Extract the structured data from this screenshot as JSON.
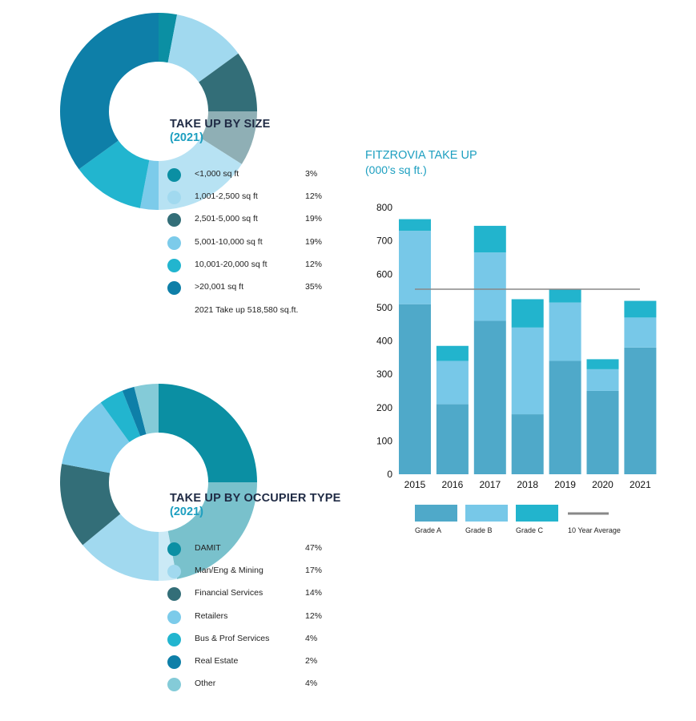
{
  "colors": {
    "teal_dark": "#0b8fa3",
    "light_blue": "#a1d9ef",
    "slate": "#336e78",
    "sky": "#7ccbea",
    "cyan": "#22b5cf",
    "ocean": "#0e7fa8",
    "pale": "#84cbd8",
    "grade_a": "#4fa9c9",
    "grade_b": "#77c8e8",
    "grade_c": "#22b4cd",
    "avg_line": "#888888",
    "title_navy": "#1f2a44",
    "title_teal": "#1d9fc0"
  },
  "size_panel": {
    "title": "TAKE UP BY SIZE",
    "year": "(2021)",
    "footnote": "2021 Take up 518,580 sq.ft."
  },
  "occupier_panel": {
    "title": "TAKE UP BY OCCUPIER TYPE",
    "year": "(2021)"
  },
  "bar_panel": {
    "title": "FITZROVIA TAKE UP",
    "subtitle": "(000’s sq ft.)"
  },
  "chart_data": [
    {
      "type": "pie",
      "title": "TAKE UP BY SIZE",
      "subtitle": "(2021)",
      "labels": [
        "<1,000 sq ft",
        "1,001-2,500 sq ft",
        "2,501-5,000 sq ft",
        "5,001-10,000 sq ft",
        "10,001-20,000 sq ft",
        ">20,001 sq ft"
      ],
      "value_labels": [
        "3%",
        "12%",
        "19%",
        "19%",
        "12%",
        "35%"
      ],
      "values": [
        3,
        12,
        19,
        19,
        12,
        35
      ],
      "colors": [
        "#0b8fa3",
        "#a1d9ef",
        "#336e78",
        "#7ccbea",
        "#22b5cf",
        "#0e7fa8"
      ],
      "annotation": "2021 Take up 518,580 sq.ft."
    },
    {
      "type": "pie",
      "title": "TAKE UP BY OCCUPIER TYPE",
      "subtitle": "(2021)",
      "labels": [
        "DAMIT",
        "Man/Eng & Mining",
        "Financial Services",
        "Retailers",
        "Bus & Prof Services",
        "Real Estate",
        "Other"
      ],
      "value_labels": [
        "47%",
        "17%",
        "14%",
        "12%",
        "4%",
        "2%",
        "4%"
      ],
      "values": [
        47,
        17,
        14,
        12,
        4,
        2,
        4
      ],
      "colors": [
        "#0b8fa3",
        "#a1d9ef",
        "#336e78",
        "#7ccbea",
        "#22b5cf",
        "#0e7fa8",
        "#84cbd8"
      ]
    },
    {
      "type": "bar",
      "stacked": true,
      "title": "FITZROVIA TAKE UP",
      "subtitle": "(000’s sq ft.)",
      "categories": [
        "2015",
        "2016",
        "2017",
        "2018",
        "2019",
        "2020",
        "2021"
      ],
      "series": [
        {
          "name": "Grade A",
          "color": "#4fa9c9",
          "values": [
            510,
            210,
            460,
            180,
            340,
            250,
            380
          ]
        },
        {
          "name": "Grade B",
          "color": "#77c8e8",
          "values": [
            220,
            130,
            205,
            260,
            175,
            65,
            90
          ]
        },
        {
          "name": "Grade C",
          "color": "#22b4cd",
          "values": [
            35,
            45,
            80,
            85,
            40,
            30,
            50
          ]
        }
      ],
      "average": {
        "name": "10 Year Average",
        "value": 555,
        "color": "#888888"
      },
      "yticks": [
        0,
        100,
        200,
        300,
        400,
        500,
        600,
        700,
        800
      ],
      "ylim": [
        0,
        800
      ],
      "grid": false,
      "legend": "bottom"
    }
  ]
}
